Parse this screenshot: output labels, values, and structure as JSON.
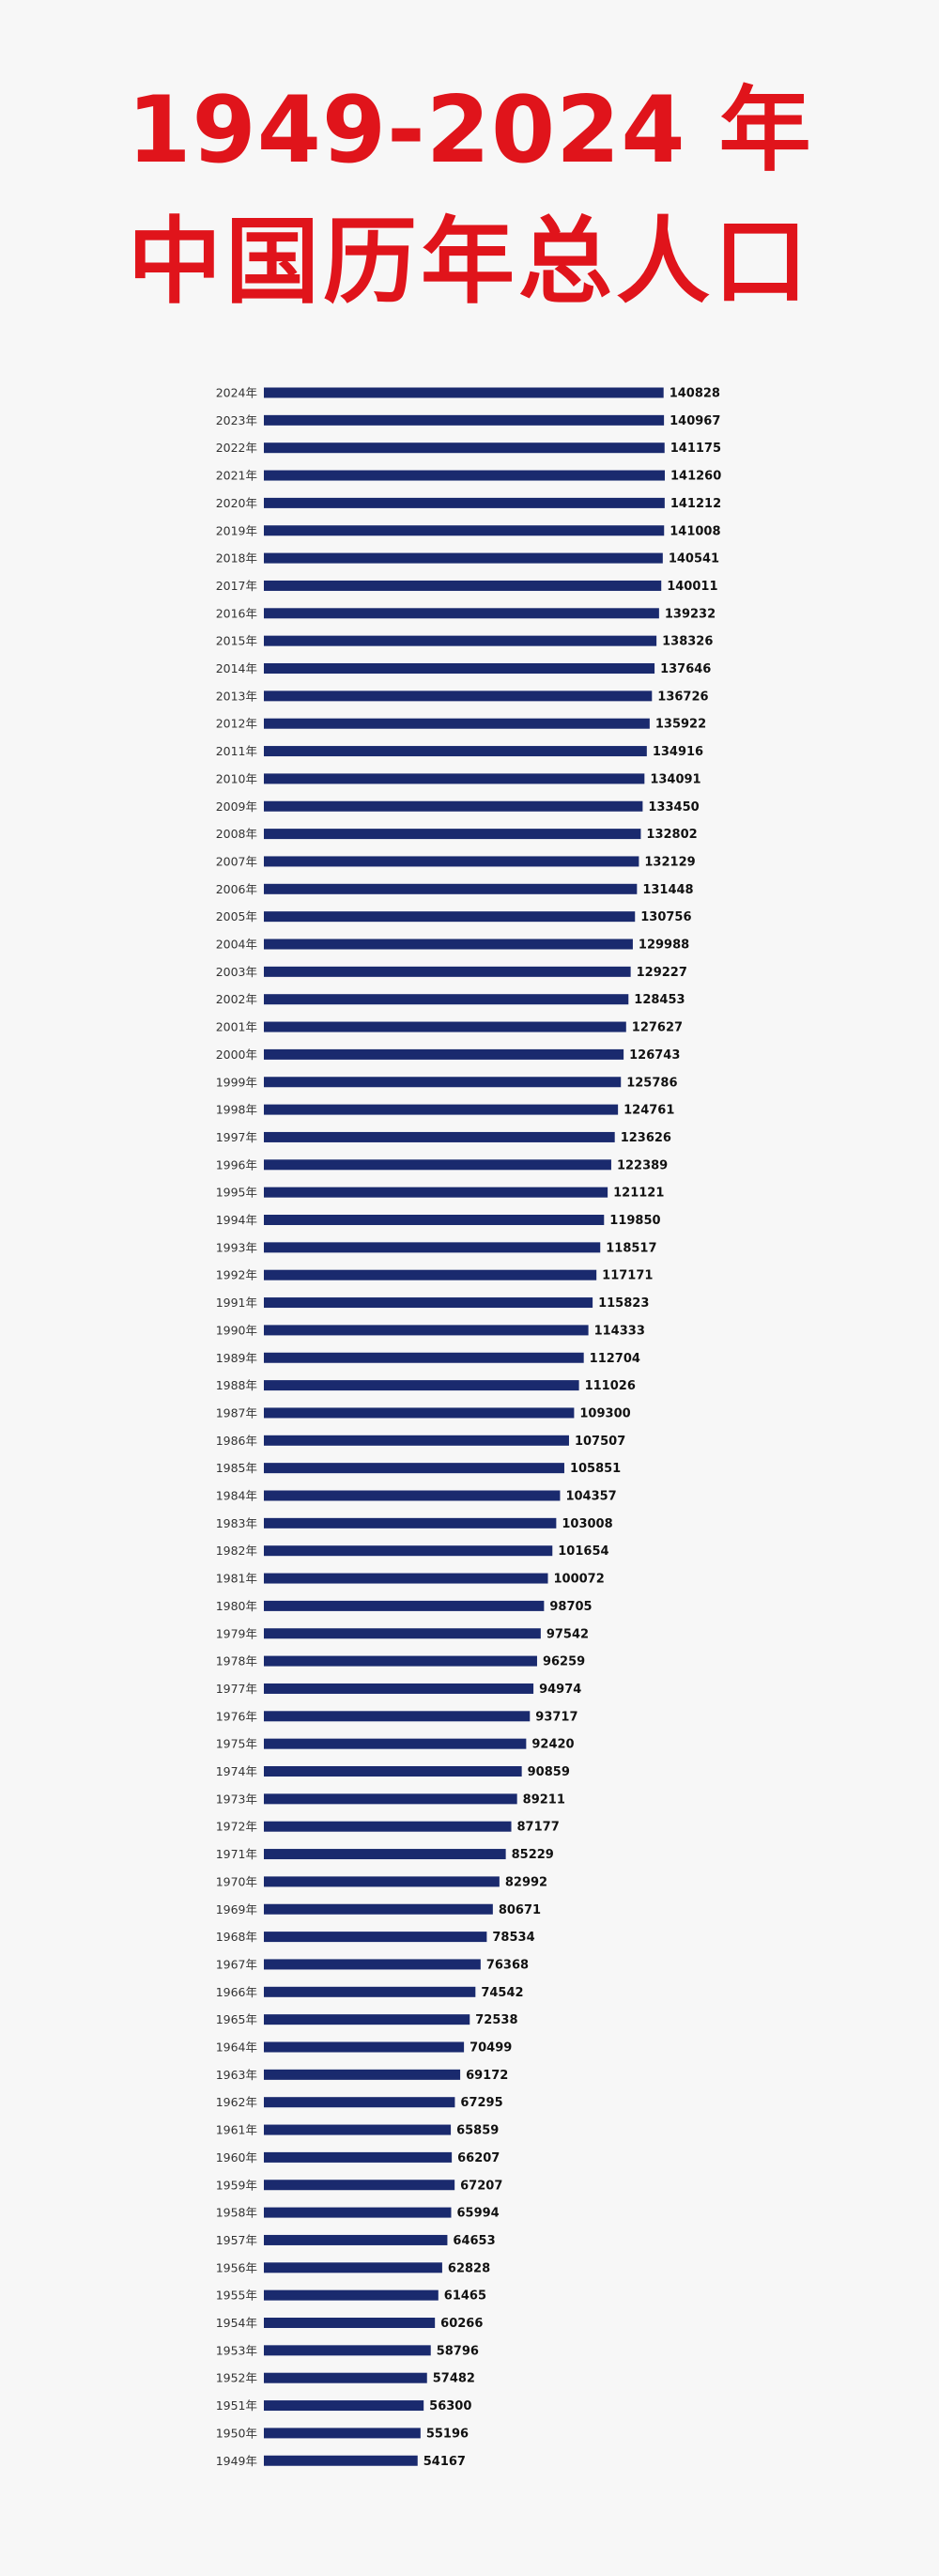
{
  "title": {
    "line1": "1949-2024 年",
    "line2": "中国历年总人口"
  },
  "colors": {
    "title": "#e0141b",
    "bar": "#1a2a6e",
    "background": "#f7f7f7"
  },
  "chart_data": {
    "type": "bar",
    "orientation": "horizontal",
    "title": "1949-2024 年 中国历年总人口",
    "xlabel": "",
    "ylabel": "",
    "grid": false,
    "legend": "none",
    "xlim": [
      0,
      141260
    ],
    "categories": [
      "2024年",
      "2023年",
      "2022年",
      "2021年",
      "2020年",
      "2019年",
      "2018年",
      "2017年",
      "2016年",
      "2015年",
      "2014年",
      "2013年",
      "2012年",
      "2011年",
      "2010年",
      "2009年",
      "2008年",
      "2007年",
      "2006年",
      "2005年",
      "2004年",
      "2003年",
      "2002年",
      "2001年",
      "2000年",
      "1999年",
      "1998年",
      "1997年",
      "1996年",
      "1995年",
      "1994年",
      "1993年",
      "1992年",
      "1991年",
      "1990年",
      "1989年",
      "1988年",
      "1987年",
      "1986年",
      "1985年",
      "1984年",
      "1983年",
      "1982年",
      "1981年",
      "1980年",
      "1979年",
      "1978年",
      "1977年",
      "1976年",
      "1975年",
      "1974年",
      "1973年",
      "1972年",
      "1971年",
      "1970年",
      "1969年",
      "1968年",
      "1967年",
      "1966年",
      "1965年",
      "1964年",
      "1963年",
      "1962年",
      "1961年",
      "1960年",
      "1959年",
      "1958年",
      "1957年",
      "1956年",
      "1955年",
      "1954年",
      "1953年",
      "1952年",
      "1951年",
      "1950年",
      "1949年"
    ],
    "values": [
      140828,
      140967,
      141175,
      141260,
      141212,
      141008,
      140541,
      140011,
      139232,
      138326,
      137646,
      136726,
      135922,
      134916,
      134091,
      133450,
      132802,
      132129,
      131448,
      130756,
      129988,
      129227,
      128453,
      127627,
      126743,
      125786,
      124761,
      123626,
      122389,
      121121,
      119850,
      118517,
      117171,
      115823,
      114333,
      112704,
      111026,
      109300,
      107507,
      105851,
      104357,
      103008,
      101654,
      100072,
      98705,
      97542,
      96259,
      94974,
      93717,
      92420,
      90859,
      89211,
      87177,
      85229,
      82992,
      80671,
      78534,
      76368,
      74542,
      72538,
      70499,
      69172,
      67295,
      65859,
      66207,
      67207,
      65994,
      64653,
      62828,
      61465,
      60266,
      58796,
      57482,
      56300,
      55196,
      54167
    ]
  }
}
